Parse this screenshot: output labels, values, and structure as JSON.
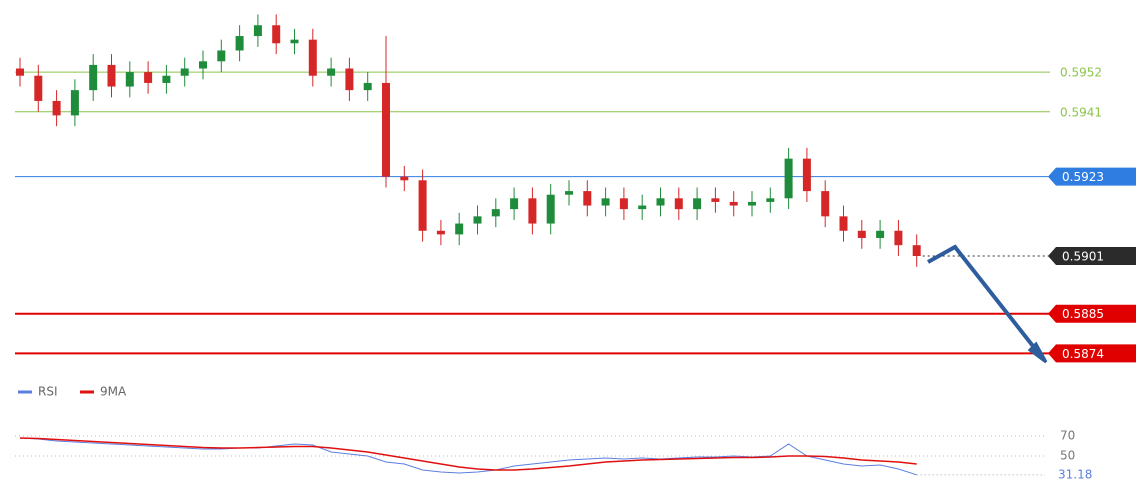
{
  "chart_data": [
    {
      "type": "candlestick",
      "open": [
        0.5953,
        0.5951,
        0.5944,
        0.594,
        0.5947,
        0.5954,
        0.5948,
        0.5952,
        0.5949,
        0.5951,
        0.5953,
        0.5955,
        0.5958,
        0.5962,
        0.5965,
        0.596,
        0.5961,
        0.5951,
        0.5953,
        0.5947,
        0.5949,
        0.5923,
        0.5922,
        0.5908,
        0.5907,
        0.591,
        0.5912,
        0.5914,
        0.5917,
        0.591,
        0.5918,
        0.5919,
        0.5915,
        0.5917,
        0.5914,
        0.5915,
        0.5917,
        0.5914,
        0.5917,
        0.5916,
        0.5915,
        0.5916,
        0.5917,
        0.5928,
        0.5919,
        0.5912,
        0.5908,
        0.5906,
        0.5908,
        0.5904
      ],
      "high": [
        0.5956,
        0.5954,
        0.5947,
        0.595,
        0.5957,
        0.5957,
        0.5955,
        0.5955,
        0.5954,
        0.5956,
        0.5958,
        0.5961,
        0.5965,
        0.5968,
        0.5968,
        0.5964,
        0.5964,
        0.5956,
        0.5956,
        0.5952,
        0.5962,
        0.5926,
        0.5925,
        0.5911,
        0.5913,
        0.5915,
        0.5917,
        0.592,
        0.592,
        0.5921,
        0.5922,
        0.5922,
        0.592,
        0.592,
        0.5918,
        0.592,
        0.592,
        0.592,
        0.592,
        0.5919,
        0.5919,
        0.592,
        0.5931,
        0.5931,
        0.5922,
        0.5915,
        0.5911,
        0.5911,
        0.5911,
        0.5907
      ],
      "low": [
        0.5948,
        0.5941,
        0.5937,
        0.5937,
        0.5944,
        0.5945,
        0.5945,
        0.5946,
        0.5946,
        0.5948,
        0.595,
        0.5952,
        0.5955,
        0.5959,
        0.5957,
        0.5957,
        0.5948,
        0.5948,
        0.5944,
        0.5944,
        0.592,
        0.5919,
        0.5905,
        0.5904,
        0.5904,
        0.5907,
        0.5909,
        0.5911,
        0.5907,
        0.5907,
        0.5915,
        0.5912,
        0.5912,
        0.5911,
        0.5911,
        0.5912,
        0.5911,
        0.5911,
        0.5913,
        0.5912,
        0.5912,
        0.5913,
        0.5914,
        0.5916,
        0.5909,
        0.5905,
        0.5903,
        0.5903,
        0.5901,
        0.5898
      ],
      "close": [
        0.5951,
        0.5944,
        0.594,
        0.5947,
        0.5954,
        0.5948,
        0.5952,
        0.5949,
        0.5951,
        0.5953,
        0.5955,
        0.5958,
        0.5962,
        0.5965,
        0.596,
        0.5961,
        0.5951,
        0.5953,
        0.5947,
        0.5949,
        0.5923,
        0.5922,
        0.5908,
        0.5907,
        0.591,
        0.5912,
        0.5914,
        0.5917,
        0.591,
        0.5918,
        0.5919,
        0.5915,
        0.5917,
        0.5914,
        0.5915,
        0.5917,
        0.5914,
        0.5917,
        0.5916,
        0.5915,
        0.5916,
        0.5917,
        0.5928,
        0.5919,
        0.5912,
        0.5908,
        0.5906,
        0.5908,
        0.5904,
        0.5901
      ],
      "up_color": "#1e8c3a",
      "down_color": "#d62728",
      "ylim": [
        0.5868,
        0.5972
      ],
      "levels": [
        {
          "value": 0.5952,
          "color": "#8bc34a",
          "line_style": "solid",
          "label_style": "plain"
        },
        {
          "value": 0.5941,
          "color": "#8bc34a",
          "line_style": "solid",
          "label_style": "plain"
        },
        {
          "value": 0.5923,
          "color": "#2f7de1",
          "line_style": "solid",
          "label_style": "box"
        },
        {
          "value": 0.5901,
          "color": "#2b2b2b",
          "line_style": "dotted",
          "label_style": "box"
        },
        {
          "value": 0.5885,
          "color": "#e00000",
          "line_style": "thick",
          "label_style": "box"
        },
        {
          "value": 0.5874,
          "color": "#e00000",
          "line_style": "thick",
          "label_style": "box"
        }
      ]
    },
    {
      "type": "line",
      "series": [
        {
          "name": "RSI",
          "color": "#5b7fe0",
          "values": [
            68,
            67,
            65,
            64,
            63,
            62,
            61,
            60,
            59,
            58,
            57,
            57,
            58,
            58,
            60,
            62,
            61,
            54,
            52,
            50,
            44,
            42,
            36,
            34,
            33,
            34,
            36,
            40,
            42,
            44,
            46,
            47,
            48,
            47,
            48,
            47,
            48,
            49,
            49,
            50,
            49,
            50,
            62,
            50,
            46,
            42,
            40,
            41,
            37,
            31.18
          ]
        },
        {
          "name": "9MA",
          "color": "#e01010",
          "values": [
            68,
            67.5,
            66.5,
            65.5,
            64.5,
            63.5,
            62.5,
            61.5,
            60.5,
            59.5,
            58.5,
            58,
            58,
            58.5,
            59,
            59.5,
            59.5,
            58,
            56,
            54,
            51,
            48,
            45,
            42,
            39,
            37,
            36,
            36,
            37,
            38.5,
            40,
            42,
            44,
            45,
            46,
            46.5,
            47,
            47.5,
            48,
            48.5,
            48.5,
            49,
            50,
            50,
            49.5,
            48,
            46,
            45,
            44,
            42
          ]
        }
      ],
      "ylim": [
        25,
        100
      ],
      "yticks": [
        70,
        50
      ],
      "grid": true
    }
  ]
}
